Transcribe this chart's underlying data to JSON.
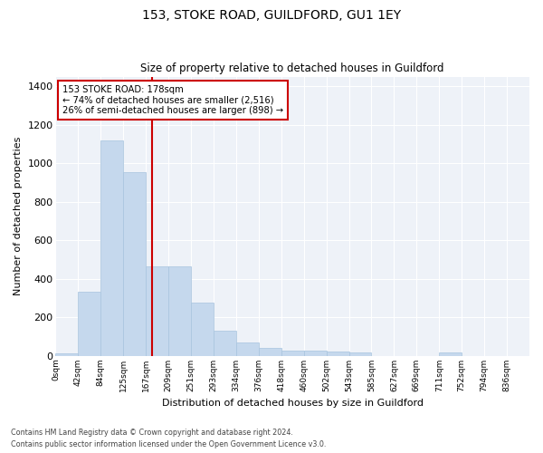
{
  "title": "153, STOKE ROAD, GUILDFORD, GU1 1EY",
  "subtitle": "Size of property relative to detached houses in Guildford",
  "xlabel": "Distribution of detached houses by size in Guildford",
  "ylabel": "Number of detached properties",
  "footnote1": "Contains HM Land Registry data © Crown copyright and database right 2024.",
  "footnote2": "Contains public sector information licensed under the Open Government Licence v3.0.",
  "annotation_line1": "153 STOKE ROAD: 178sqm",
  "annotation_line2": "← 74% of detached houses are smaller (2,516)",
  "annotation_line3": "26% of semi-detached houses are larger (898) →",
  "marker_value": 178,
  "bar_color": "#c5d8ed",
  "bar_edgecolor": "#a8c4de",
  "marker_color": "#cc0000",
  "background_color": "#eef2f8",
  "categories": [
    "0sqm",
    "42sqm",
    "84sqm",
    "125sqm",
    "167sqm",
    "209sqm",
    "251sqm",
    "293sqm",
    "334sqm",
    "376sqm",
    "418sqm",
    "460sqm",
    "502sqm",
    "543sqm",
    "585sqm",
    "627sqm",
    "669sqm",
    "711sqm",
    "752sqm",
    "794sqm",
    "836sqm"
  ],
  "values": [
    10,
    330,
    1120,
    955,
    465,
    465,
    275,
    130,
    70,
    40,
    25,
    25,
    20,
    15,
    0,
    0,
    0,
    15,
    0,
    0,
    0
  ],
  "ylim": [
    0,
    1450
  ],
  "yticks": [
    0,
    200,
    400,
    600,
    800,
    1000,
    1200,
    1400
  ]
}
